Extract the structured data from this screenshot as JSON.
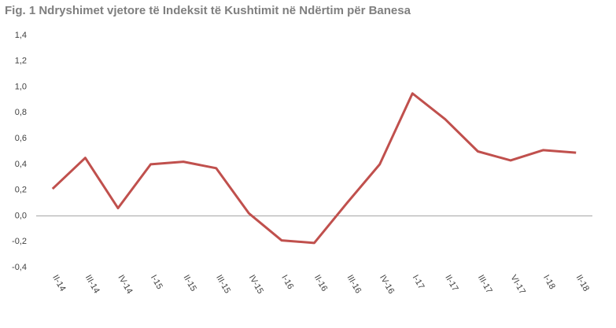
{
  "chart_data": {
    "type": "line",
    "title": "Fig. 1 Ndryshimet vjetore të Indeksit të Kushtimit në Ndërtim për Banesa",
    "categories": [
      "II-14",
      "III-14",
      "IV-14",
      "I-15",
      "II-15",
      "III-15",
      "IV-15",
      "I-16",
      "II-16",
      "III-16",
      "IV-16",
      "I-17",
      "II-17",
      "III-17",
      "VI-17",
      "I-18",
      "II-18"
    ],
    "series": [
      {
        "color": "#c0504d",
        "values": [
          0.21,
          0.45,
          0.06,
          0.4,
          0.42,
          0.37,
          0.02,
          -0.19,
          -0.21,
          0.1,
          0.4,
          0.95,
          0.75,
          0.5,
          0.43,
          0.51,
          0.49
        ]
      }
    ],
    "ylim": [
      -0.4,
      1.4
    ],
    "yticks": [
      {
        "value": -0.4,
        "label": "-0,4"
      },
      {
        "value": -0.2,
        "label": "-0,2"
      },
      {
        "value": 0,
        "label": "0,0"
      },
      {
        "value": 0.2,
        "label": "0,2"
      },
      {
        "value": 0.4,
        "label": "0,4"
      },
      {
        "value": 0.6,
        "label": "0,6"
      },
      {
        "value": 0.8,
        "label": "0,8"
      },
      {
        "value": 1.0,
        "label": "1,0"
      },
      {
        "value": 1.2,
        "label": "1,2"
      },
      {
        "value": 1.4,
        "label": "1,4"
      }
    ],
    "zero_line": true
  }
}
